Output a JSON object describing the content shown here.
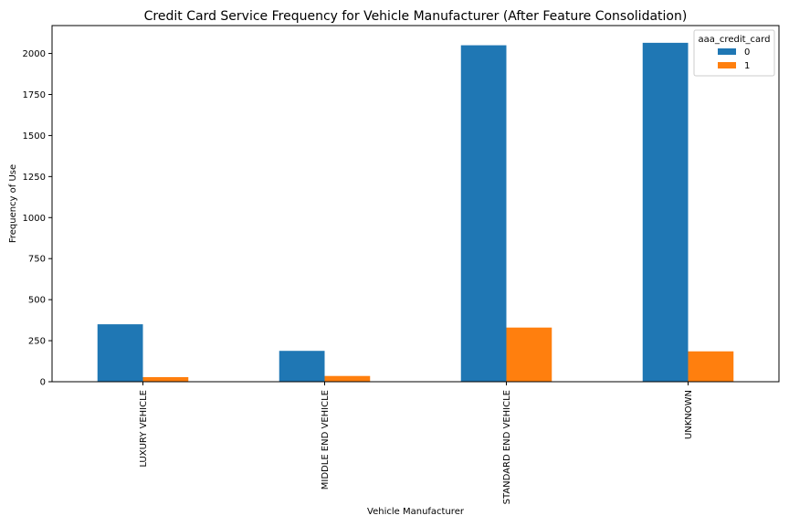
{
  "chart_data": {
    "type": "bar",
    "title": "Credit Card Service Frequency for Vehicle Manufacturer (After Feature Consolidation)",
    "xlabel": "Vehicle Manufacturer",
    "ylabel": "Frequency of Use",
    "categories": [
      "LUXURY VEHICLE",
      "MIDDLE END VEHICLE",
      "STANDARD END VEHICLE",
      "UNKNOWN"
    ],
    "series": [
      {
        "name": "0",
        "color": "#1f77b4",
        "values": [
          350,
          188,
          2050,
          2065
        ]
      },
      {
        "name": "1",
        "color": "#ff7f0e",
        "values": [
          28,
          35,
          330,
          185
        ]
      }
    ],
    "ylim": [
      0,
      2170
    ],
    "yticks": [
      0,
      250,
      500,
      750,
      1000,
      1250,
      1500,
      1750,
      2000
    ],
    "legend": {
      "title": "aaa_credit_card",
      "placement": "top-right"
    },
    "grid": false
  }
}
